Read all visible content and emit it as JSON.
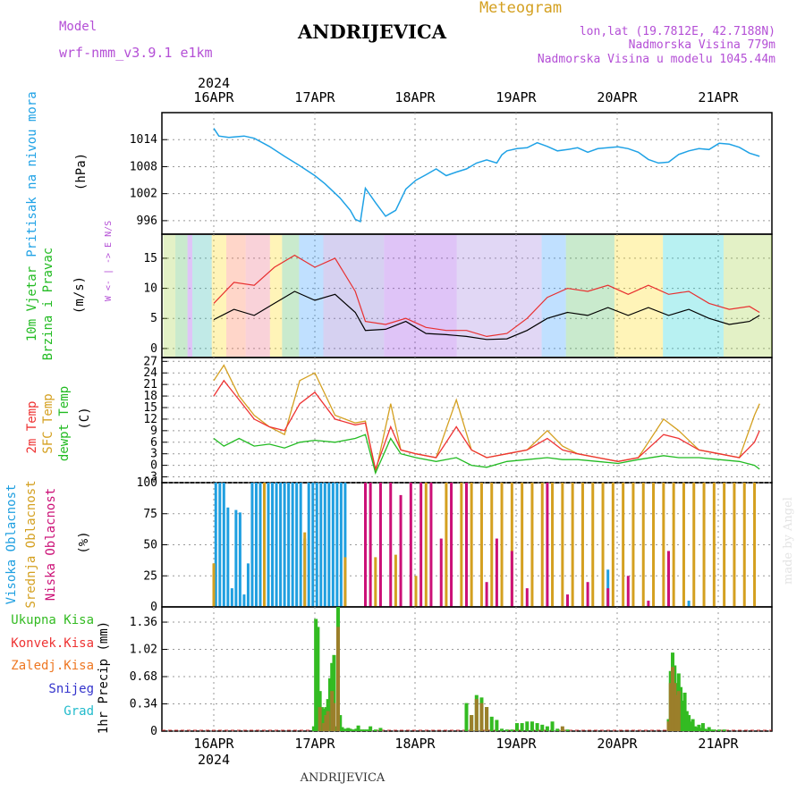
{
  "header": {
    "model_label": "Model",
    "model_name": "wrf-nmm_v3.9.1  e1km",
    "station": "ANDRIJEVICA",
    "product": "Meteogram",
    "coords": "lon,lat (19.7812E, 42.7188N)",
    "elevation": "Nadmorska Visina 779m",
    "model_elevation": "Nadmorska Visina u modelu 1045.44m",
    "year": "2024",
    "watermark": "made by Angel",
    "footer_station": "ANDRIJEVICA"
  },
  "colors": {
    "pressure": "#1fa2e6",
    "wind_label": "#22bb22",
    "temp_2m": "#ee3333",
    "temp_sfc": "#d4a020",
    "dewpoint": "#22bb22",
    "cloud_high": "#1f9fe0",
    "cloud_mid": "#d4a020",
    "cloud_low": "#cc1177",
    "precip_total": "#33bb22",
    "precip_conv": "#ee3333",
    "precip_frozen": "#ee7722",
    "precip_snow": "#3333cc",
    "precip_hail": "#22bbcc",
    "label_purple": "#b44fd6"
  },
  "chart_data": [
    {
      "type": "line",
      "panel": "pressure",
      "ylabel": "Pritisak na nivou mora",
      "unit": "(hPa)",
      "ylim": [
        993,
        1020
      ],
      "yticks": [
        996,
        1002,
        1008,
        1014
      ],
      "x_dates": [
        "16APR",
        "17APR",
        "18APR",
        "19APR",
        "20APR",
        "21APR"
      ],
      "series": [
        {
          "x": [
            0,
            0.05,
            0.15,
            0.3,
            0.4,
            0.55,
            0.7,
            0.85,
            1.0,
            1.1,
            1.25,
            1.35,
            1.4,
            1.45,
            1.5,
            1.6,
            1.7,
            1.8,
            1.9,
            2.0,
            2.1,
            2.2,
            2.3,
            2.4,
            2.5,
            2.6,
            2.7,
            2.8,
            2.85,
            2.9,
            3.0,
            3.1,
            3.2,
            3.3,
            3.4,
            3.5,
            3.6,
            3.7,
            3.8,
            3.9,
            4.0,
            4.1,
            4.2,
            4.3,
            4.4,
            4.5,
            4.6,
            4.7,
            4.8,
            4.9,
            5.0,
            5.1,
            5.2,
            5.3,
            5.4
          ],
          "values": [
            1016.5,
            1014.8,
            1014.5,
            1014.8,
            1014.3,
            1012.5,
            1010.3,
            1008.2,
            1006.0,
            1004.2,
            1001.0,
            998.3,
            996.3,
            995.8,
            1003.2,
            1000.0,
            997.0,
            998.3,
            1003.0,
            1005.0,
            1006.2,
            1007.5,
            1006.0,
            1006.8,
            1007.5,
            1008.8,
            1009.5,
            1008.8,
            1010.6,
            1011.5,
            1012.0,
            1012.2,
            1013.3,
            1012.5,
            1011.5,
            1011.8,
            1012.2,
            1011.2,
            1012.0,
            1012.2,
            1012.4,
            1012.0,
            1011.2,
            1009.6,
            1008.8,
            1009.0,
            1010.7,
            1011.5,
            1012.0,
            1011.8,
            1013.2,
            1013.0,
            1012.3,
            1011.0,
            1010.3
          ]
        }
      ]
    },
    {
      "type": "line",
      "panel": "wind",
      "ylabel": "10m Vjetar Brzina i Pravac",
      "unit": "(m/s)",
      "compass": "W <- | -> E   N/S",
      "ylim": [
        -1.5,
        19
      ],
      "yticks": [
        0,
        5,
        10,
        15
      ],
      "series": [
        {
          "name": "speed",
          "x": [
            0,
            0.2,
            0.4,
            0.6,
            0.8,
            1.0,
            1.2,
            1.4,
            1.5,
            1.7,
            1.9,
            2.1,
            2.3,
            2.5,
            2.7,
            2.9,
            3.1,
            3.3,
            3.5,
            3.7,
            3.9,
            4.1,
            4.3,
            4.5,
            4.7,
            4.9,
            5.1,
            5.3,
            5.4
          ],
          "values": [
            4.8,
            6.5,
            5.5,
            7.5,
            9.5,
            8.0,
            9.0,
            6.0,
            3.0,
            3.2,
            4.5,
            2.5,
            2.3,
            2.0,
            1.5,
            1.6,
            3.0,
            5.0,
            6.0,
            5.5,
            6.8,
            5.5,
            6.8,
            5.5,
            6.5,
            5.0,
            4.0,
            4.5,
            5.5
          ]
        },
        {
          "name": "gust",
          "x": [
            0,
            0.2,
            0.4,
            0.6,
            0.8,
            1.0,
            1.2,
            1.4,
            1.5,
            1.7,
            1.9,
            2.1,
            2.3,
            2.5,
            2.7,
            2.9,
            3.1,
            3.3,
            3.5,
            3.7,
            3.9,
            4.1,
            4.3,
            4.5,
            4.7,
            4.9,
            5.1,
            5.3,
            5.4
          ],
          "values": [
            7.5,
            11.0,
            10.5,
            13.5,
            15.5,
            13.5,
            15.0,
            9.5,
            4.5,
            4.0,
            5.0,
            3.5,
            3.0,
            3.0,
            2.0,
            2.5,
            5.0,
            8.5,
            10.0,
            9.5,
            10.5,
            9.0,
            10.5,
            9.0,
            9.5,
            7.5,
            6.5,
            7.0,
            6.0
          ]
        }
      ]
    },
    {
      "type": "line",
      "panel": "temperature",
      "ylabel": "2m Temp / SFC Temp / dewpt Temp",
      "unit": "(C)",
      "ylim": [
        -4.5,
        28
      ],
      "yticks": [
        -3,
        0,
        3,
        6,
        9,
        12,
        15,
        18,
        21,
        24,
        27
      ],
      "series": [
        {
          "name": "2m Temp",
          "x": [
            0,
            0.1,
            0.25,
            0.4,
            0.55,
            0.7,
            0.85,
            1.0,
            1.2,
            1.4,
            1.5,
            1.6,
            1.75,
            1.85,
            2.0,
            2.2,
            2.4,
            2.55,
            2.7,
            2.9,
            3.1,
            3.3,
            3.45,
            3.6,
            3.8,
            4.0,
            4.2,
            4.45,
            4.6,
            4.8,
            5.0,
            5.2,
            5.35,
            5.4
          ],
          "values": [
            18,
            22,
            17,
            12,
            10,
            9,
            16,
            19,
            12,
            10.5,
            11,
            -1,
            10,
            4,
            3,
            2,
            10,
            4,
            2,
            3,
            4,
            7,
            4,
            3,
            2,
            1,
            2,
            8,
            7,
            4,
            3,
            2,
            6,
            9
          ]
        },
        {
          "name": "SFC Temp",
          "x": [
            0,
            0.1,
            0.25,
            0.4,
            0.55,
            0.7,
            0.85,
            1.0,
            1.2,
            1.4,
            1.5,
            1.6,
            1.75,
            1.85,
            2.0,
            2.2,
            2.4,
            2.55,
            2.7,
            2.9,
            3.1,
            3.3,
            3.45,
            3.6,
            3.8,
            4.0,
            4.2,
            4.45,
            4.6,
            4.8,
            5.0,
            5.2,
            5.35,
            5.4
          ],
          "values": [
            22,
            26,
            18,
            13,
            10,
            8,
            22,
            24,
            13,
            11,
            11.5,
            -2,
            16,
            4,
            3,
            2,
            17,
            4,
            2,
            3,
            4,
            9,
            5,
            3,
            2,
            1,
            2,
            12,
            9,
            4,
            3,
            2,
            13,
            16
          ]
        },
        {
          "name": "dewpt Temp",
          "x": [
            0,
            0.1,
            0.25,
            0.4,
            0.55,
            0.7,
            0.85,
            1.0,
            1.2,
            1.4,
            1.5,
            1.6,
            1.75,
            1.85,
            2.0,
            2.2,
            2.4,
            2.55,
            2.7,
            2.9,
            3.1,
            3.3,
            3.45,
            3.6,
            3.8,
            4.0,
            4.2,
            4.45,
            4.6,
            4.8,
            5.0,
            5.2,
            5.35,
            5.4
          ],
          "values": [
            7,
            5,
            7,
            5,
            5.5,
            4.5,
            6,
            6.5,
            6,
            7,
            8,
            -2,
            7,
            3,
            2,
            1,
            2,
            0,
            -0.5,
            1,
            1.5,
            2,
            1.5,
            1.5,
            1,
            0.5,
            1.5,
            2.5,
            2,
            2,
            1.5,
            1,
            0,
            -1
          ]
        }
      ]
    },
    {
      "type": "bar",
      "panel": "clouds",
      "ylabel": "Visoka Oblacnost / Srednja Oblacnost / Niska Oblacnost",
      "unit": "(%)",
      "ylim": [
        0,
        100
      ],
      "yticks": [
        0,
        25,
        50,
        75,
        100
      ],
      "series": [
        {
          "name": "Visoka Oblacnost",
          "x": [
            0.02,
            0.06,
            0.1,
            0.14,
            0.18,
            0.22,
            0.26,
            0.3,
            0.34,
            0.38,
            0.42,
            0.46,
            0.5,
            0.54,
            0.58,
            0.62,
            0.66,
            0.7,
            0.74,
            0.78,
            0.82,
            0.86,
            0.9,
            0.94,
            0.98,
            1.02,
            1.06,
            1.1,
            1.14,
            1.18,
            1.22,
            1.26,
            1.3,
            3.9,
            4.7
          ],
          "values": [
            100,
            100,
            100,
            80,
            15,
            78,
            76,
            10,
            35,
            100,
            100,
            100,
            100,
            100,
            100,
            100,
            100,
            100,
            100,
            100,
            100,
            100,
            55,
            100,
            100,
            100,
            100,
            100,
            100,
            100,
            100,
            100,
            100,
            30,
            5
          ]
        },
        {
          "name": "Srednja Oblacnost",
          "x": [
            0.0,
            0.5,
            0.9,
            1.3,
            1.6,
            1.8,
            2.0,
            2.1,
            2.3,
            2.45,
            2.55,
            2.65,
            2.75,
            2.85,
            2.95,
            3.05,
            3.15,
            3.25,
            3.35,
            3.45,
            3.55,
            3.65,
            3.75,
            3.85,
            3.95,
            4.05,
            4.15,
            4.25,
            4.35,
            4.45,
            4.55,
            4.65,
            4.75,
            4.85,
            4.95,
            5.05,
            5.15,
            5.25,
            5.35
          ],
          "values": [
            35,
            100,
            60,
            40,
            40,
            42,
            25,
            100,
            100,
            100,
            100,
            100,
            100,
            100,
            100,
            100,
            100,
            100,
            100,
            100,
            100,
            100,
            100,
            100,
            100,
            100,
            100,
            100,
            100,
            100,
            100,
            100,
            100,
            100,
            100,
            100,
            100,
            100,
            100
          ]
        },
        {
          "name": "Niska Oblacnost",
          "x": [
            1.5,
            1.55,
            1.65,
            1.75,
            1.85,
            1.95,
            2.05,
            2.15,
            2.25,
            2.35,
            2.5,
            2.7,
            2.8,
            2.95,
            3.1,
            3.3,
            3.5,
            3.7,
            3.9,
            4.1,
            4.3,
            4.5
          ],
          "values": [
            100,
            100,
            100,
            100,
            90,
            100,
            100,
            100,
            55,
            100,
            100,
            20,
            55,
            45,
            15,
            100,
            10,
            20,
            15,
            25,
            5,
            45
          ]
        }
      ]
    },
    {
      "type": "bar",
      "panel": "precipitation",
      "ylabel": "1hr Precip (mm)",
      "legend": [
        "Ukupna Kisa",
        "Konvek.Kisa",
        "Zaledj.Kisa",
        "Snijeg",
        "Grad"
      ],
      "ylim": [
        0,
        1.55
      ],
      "yticks": [
        0,
        0.34,
        0.68,
        1.02,
        1.36
      ],
      "series": [
        {
          "name": "Ukupna Kisa",
          "x": [
            0.99,
            1.01,
            1.03,
            1.05,
            1.07,
            1.09,
            1.11,
            1.13,
            1.15,
            1.17,
            1.19,
            1.21,
            1.23,
            1.25,
            1.27,
            1.29,
            1.31,
            1.33,
            1.35,
            1.37,
            1.39,
            1.41,
            1.43,
            1.45,
            1.47,
            1.49,
            1.51,
            1.53,
            1.55,
            1.6,
            1.65,
            2.5,
            2.55,
            2.6,
            2.65,
            2.7,
            2.75,
            2.8,
            2.85,
            2.9,
            2.95,
            3.0,
            3.05,
            3.1,
            3.15,
            3.2,
            3.25,
            3.3,
            3.35,
            3.4,
            3.45,
            3.5,
            4.5,
            4.52,
            4.54,
            4.56,
            4.58,
            4.6,
            4.62,
            4.64,
            4.66,
            4.68,
            4.7,
            4.72,
            4.74,
            4.76,
            4.78,
            4.8,
            4.82,
            4.84,
            4.86,
            4.88,
            4.9,
            4.92,
            4.95,
            5.0,
            5.05
          ],
          "values": [
            0.06,
            1.4,
            1.3,
            0.5,
            0.3,
            0.28,
            0.3,
            0.4,
            0.66,
            0.85,
            0.95,
            0.06,
            1.55,
            0.2,
            0.05,
            0.03,
            0.03,
            0.04,
            0.03,
            0.02,
            0.02,
            0.03,
            0.07,
            0.02,
            0.02,
            0.02,
            0.02,
            0.02,
            0.06,
            0.02,
            0.04,
            0.35,
            0.2,
            0.45,
            0.42,
            0.3,
            0.18,
            0.14,
            0.03,
            0.02,
            0.02,
            0.1,
            0.1,
            0.12,
            0.12,
            0.1,
            0.08,
            0.06,
            0.12,
            0.03,
            0.02,
            0.02,
            0.15,
            0.75,
            0.98,
            0.82,
            0.6,
            0.72,
            0.55,
            0.38,
            0.48,
            0.25,
            0.2,
            0.12,
            0.15,
            0.06,
            0.05,
            0.08,
            0.04,
            0.1,
            0.03,
            0.02,
            0.05,
            0.02,
            0.02,
            0.02,
            0.02
          ]
        },
        {
          "name": "Konvek.Kisa",
          "x": [
            1.05,
            1.09,
            1.11,
            1.13,
            1.17,
            1.19,
            1.23,
            2.55,
            2.6,
            2.65,
            2.7,
            3.45,
            4.5,
            4.52,
            4.54,
            4.56,
            4.58,
            4.6
          ],
          "values": [
            0.3,
            0.1,
            0.2,
            0.25,
            0.5,
            0.35,
            1.3,
            0.2,
            0.4,
            0.35,
            0.3,
            0.06,
            0.12,
            0.6,
            0.8,
            0.6,
            0.45,
            0.5
          ]
        }
      ]
    }
  ]
}
